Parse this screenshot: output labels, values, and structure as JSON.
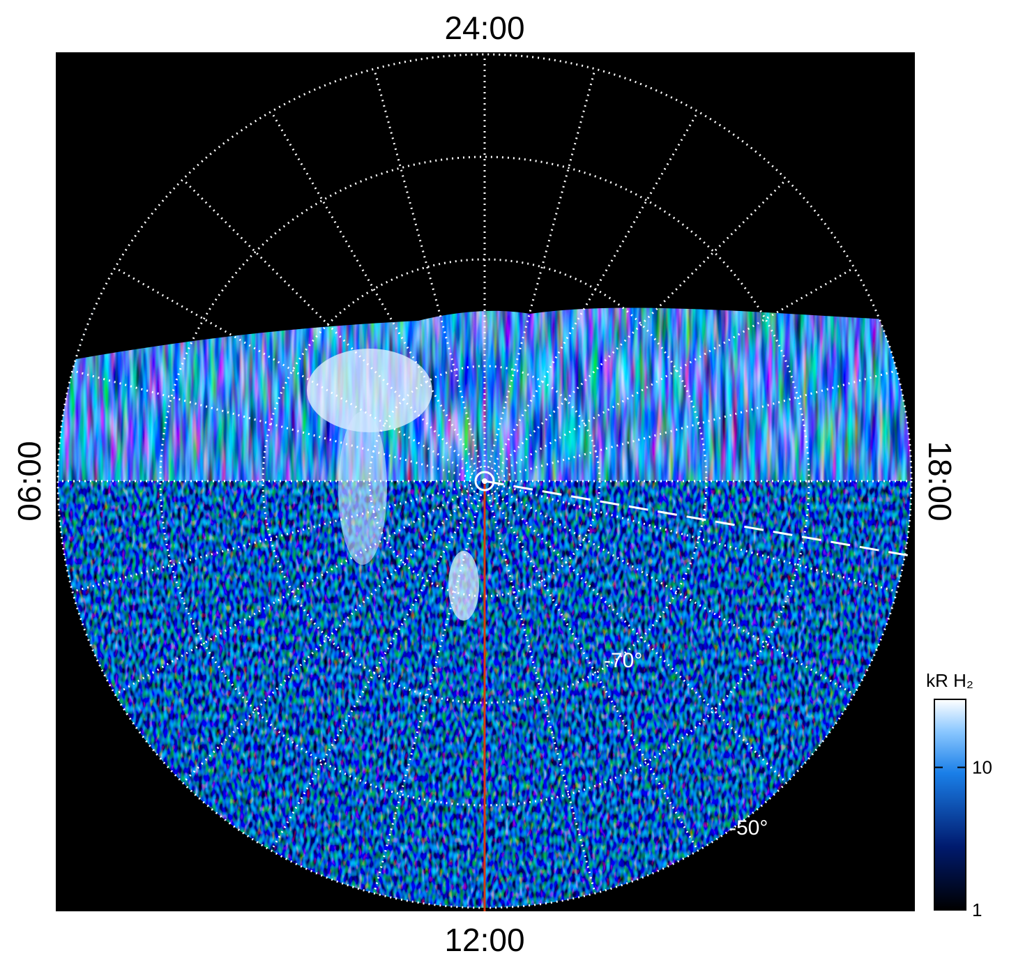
{
  "labels": {
    "top": "24:00",
    "bottom": "12:00",
    "left": "06:00",
    "right": "18:00",
    "lat_inner": "-70°",
    "lat_outer": "-50°"
  },
  "colorbar": {
    "title": "kR H₂",
    "scale": "log",
    "lim": [
      1,
      30
    ],
    "ticks": [
      1,
      10
    ]
  }
}
